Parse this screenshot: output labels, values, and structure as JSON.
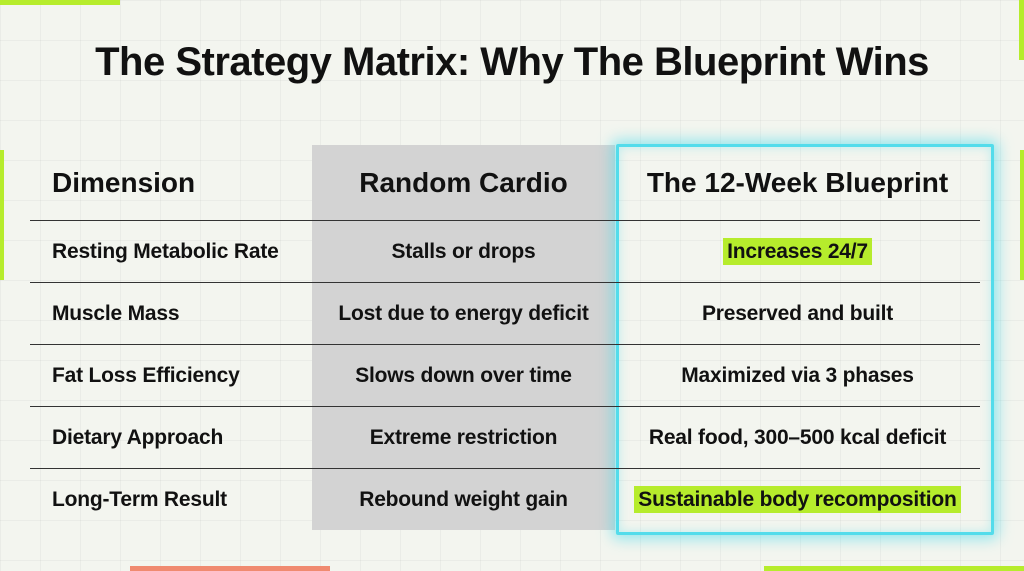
{
  "title": "The Strategy Matrix: Why The Blueprint Wins",
  "table": {
    "headers": [
      "Dimension",
      "Random Cardio",
      "The 12-Week Blueprint"
    ],
    "rows": [
      [
        "Resting Metabolic Rate",
        "Stalls or drops",
        "Increases 24/7"
      ],
      [
        "Muscle Mass",
        "Lost due to energy deficit",
        "Preserved and built"
      ],
      [
        "Fat Loss Efficiency",
        "Slows down over time",
        "Maximized via 3 phases"
      ],
      [
        "Dietary Approach",
        "Extreme restriction",
        "Real food, 300–500 kcal deficit"
      ],
      [
        "Long-Term Result",
        "Rebound weight gain",
        "Sustainable body recomposition"
      ]
    ]
  }
}
